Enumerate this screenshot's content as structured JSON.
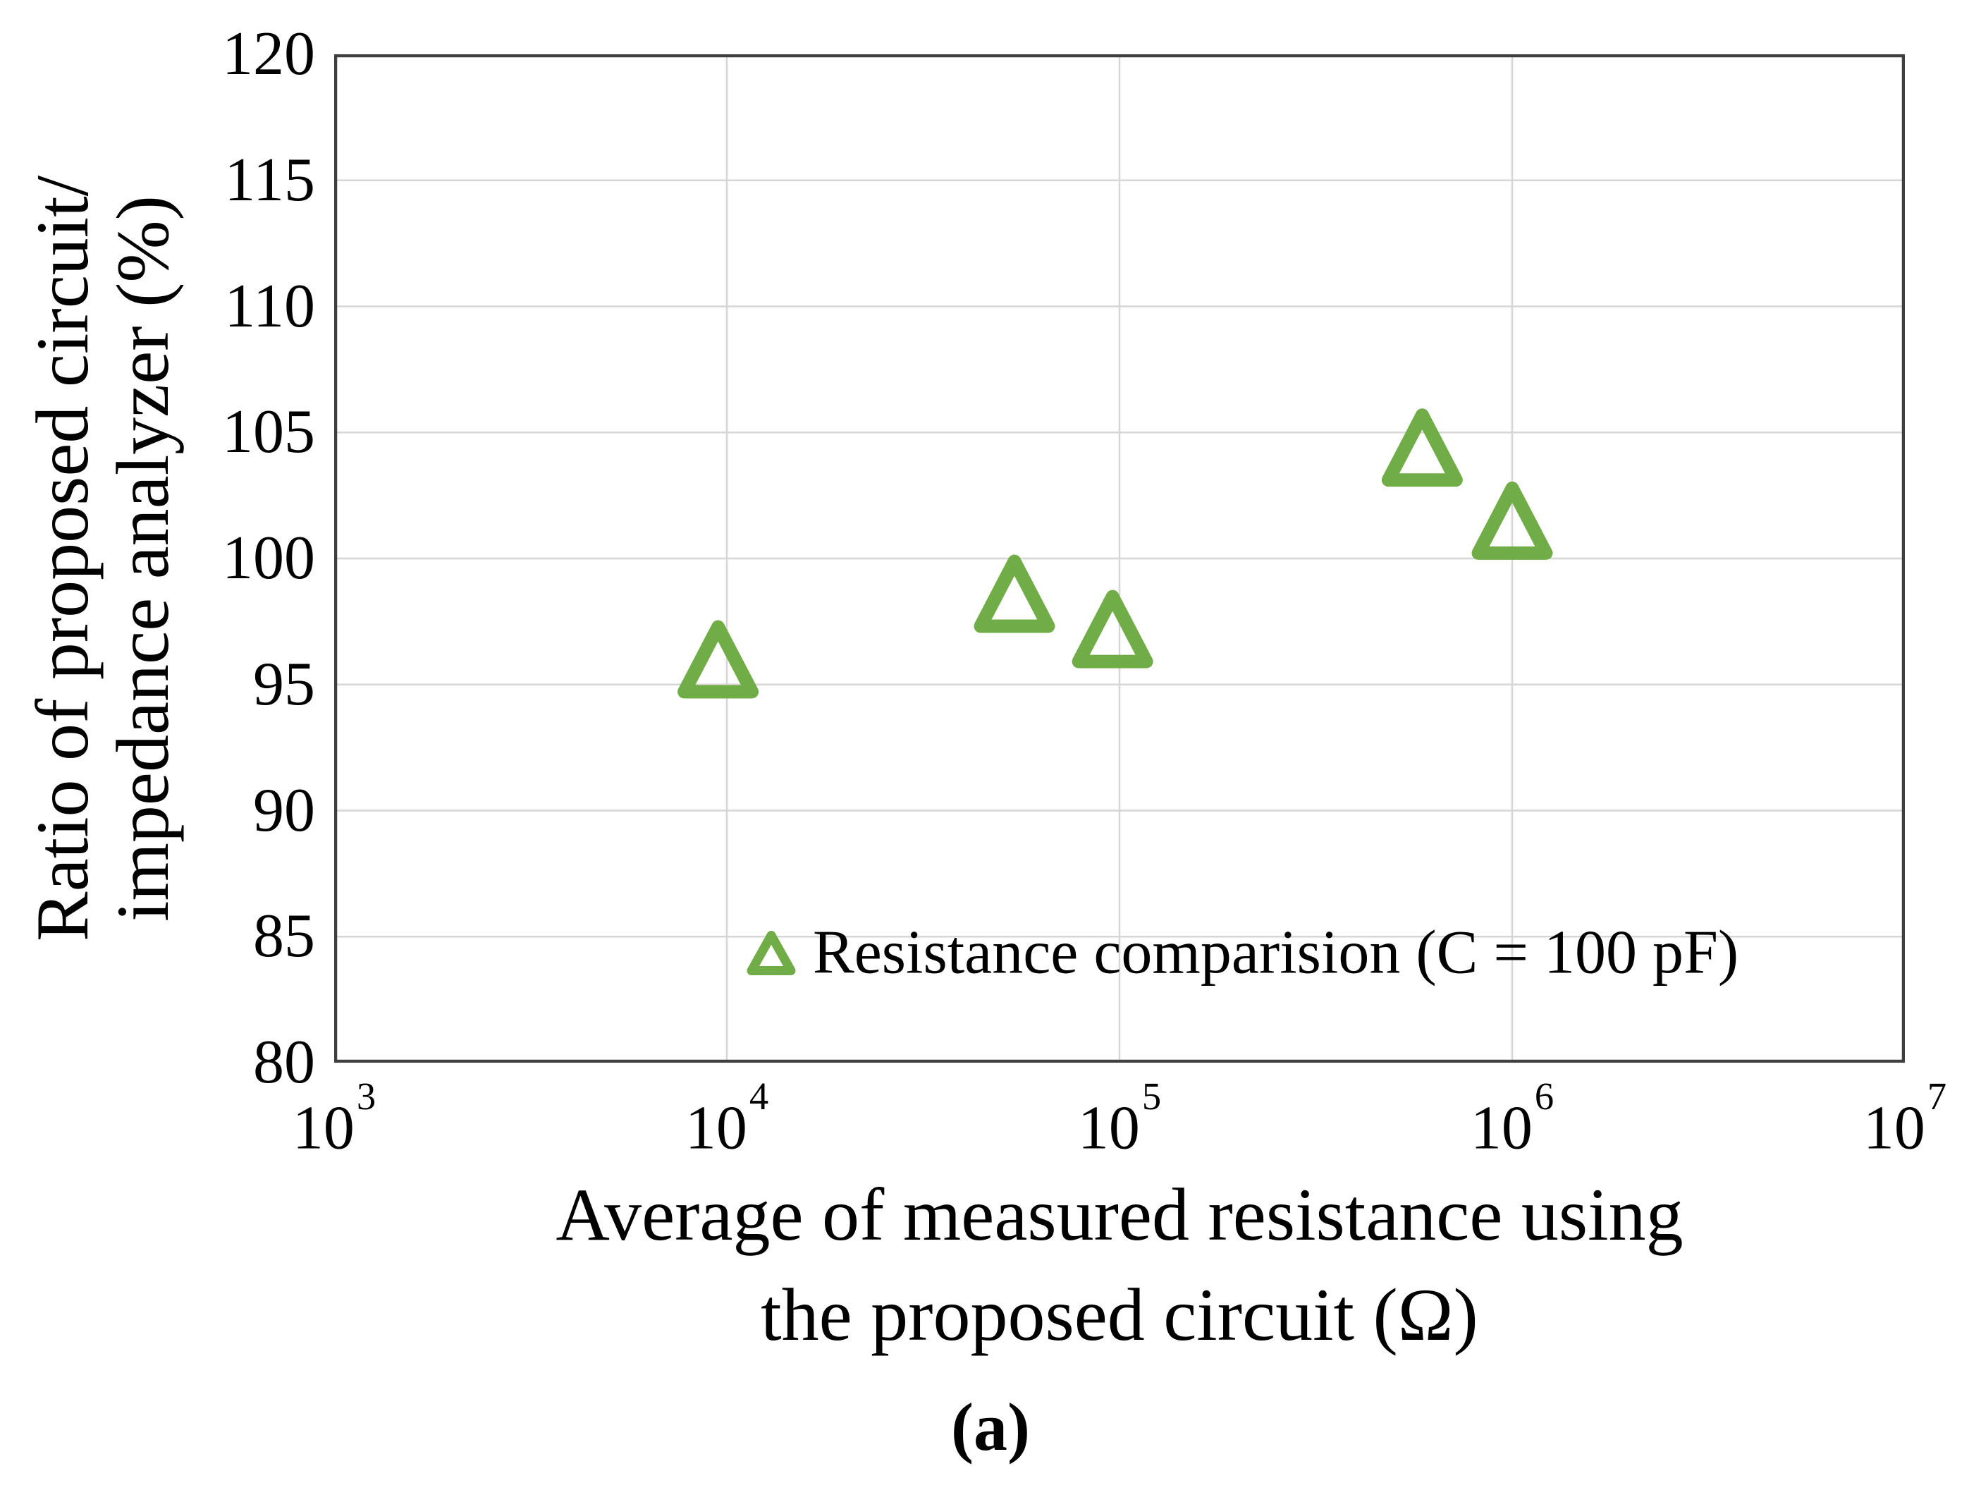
{
  "figure": {
    "caption": "(a)",
    "background": "#ffffff"
  },
  "chart_data": {
    "type": "scatter",
    "title": "",
    "x_scale": "log",
    "xlabel_lines": [
      "Average of measured resistance using",
      "the proposed circuit (Ω)"
    ],
    "ylabel_lines": [
      "Ratio of proposed circuit/",
      "impedance analyzer (%)"
    ],
    "xlim_exponents": [
      3,
      7
    ],
    "xtick_exponents": [
      3,
      4,
      5,
      6,
      7
    ],
    "xtick_base": "10",
    "ylim": [
      80,
      120
    ],
    "yticks": [
      80,
      85,
      90,
      95,
      100,
      105,
      110,
      115,
      120
    ],
    "grid": true,
    "legend": {
      "label": "Resistance comparision (C = 100 pF)",
      "position": "inside-bottom"
    },
    "series": [
      {
        "name": "Resistance comparision (C = 100 pF)",
        "marker": "open-triangle-up",
        "color": "#70ad47",
        "points": [
          {
            "x": 9500,
            "y": 96.0
          },
          {
            "x": 54000,
            "y": 98.6
          },
          {
            "x": 96000,
            "y": 97.2
          },
          {
            "x": 590000,
            "y": 104.4
          },
          {
            "x": 1000000,
            "y": 101.5
          }
        ]
      }
    ],
    "colors": {
      "marker": "#70ad47",
      "grid": "#d6d6d6",
      "axis": "#3f3f3f",
      "text": "#000000"
    }
  }
}
